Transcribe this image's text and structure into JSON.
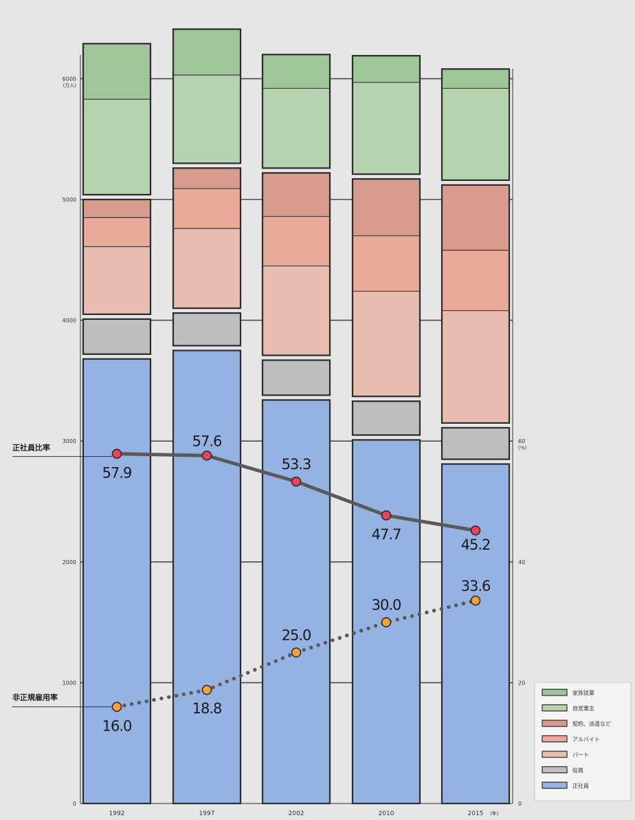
{
  "chart_data": {
    "type": "bar",
    "stacked": true,
    "categories": [
      "1992",
      "1997",
      "2002",
      "2010",
      "2015"
    ],
    "x_unit": "(年)",
    "y_left": {
      "unit_line1": "(万人)",
      "ticks": [
        0,
        1000,
        2000,
        3000,
        4000,
        5000,
        6000
      ],
      "ylim": [
        0,
        6500
      ]
    },
    "y_right": {
      "unit": "(%)",
      "ticks": [
        0,
        20,
        40,
        60
      ]
    },
    "legend_position": "bottom-right",
    "grid": true,
    "series": [
      {
        "name": "正社員",
        "color": "#95b3e2",
        "values": [
          3700,
          3770,
          3360,
          3030,
          2830
        ]
      },
      {
        "name": "役員",
        "color": "#bebebe",
        "values": [
          330,
          310,
          330,
          320,
          300
        ]
      },
      {
        "name": "パート",
        "color": "#e9bcb0",
        "values": [
          580,
          680,
          760,
          890,
          950
        ]
      },
      {
        "name": "アルバイト",
        "color": "#eba998",
        "values": [
          240,
          330,
          410,
          460,
          500
        ]
      },
      {
        "name": "契約、派遣など",
        "color": "#d99b8e",
        "values": [
          170,
          190,
          380,
          490,
          560
        ]
      },
      {
        "name": "自営業主",
        "color": "#b6d3b0",
        "values": [
          810,
          750,
          680,
          780,
          780
        ]
      },
      {
        "name": "家族従業",
        "color": "#9fc698",
        "values": [
          480,
          400,
          300,
          240,
          180
        ]
      }
    ],
    "lines": [
      {
        "name": "正社員比率",
        "style": "solid",
        "color": "#5a5a5a",
        "marker_color": "#e8455a",
        "values": [
          57.9,
          57.6,
          53.3,
          47.7,
          45.2
        ],
        "labels": [
          "57.9",
          "57.6",
          "53.3",
          "47.7",
          "45.2"
        ]
      },
      {
        "name": "非正規雇用率",
        "style": "dotted",
        "color": "#5a5a5a",
        "marker_color": "#f3a23a",
        "values": [
          16.0,
          18.8,
          25.0,
          30.0,
          33.6
        ],
        "labels": [
          "16.0",
          "18.8",
          "25.0",
          "30.0",
          "33.6"
        ]
      }
    ]
  }
}
